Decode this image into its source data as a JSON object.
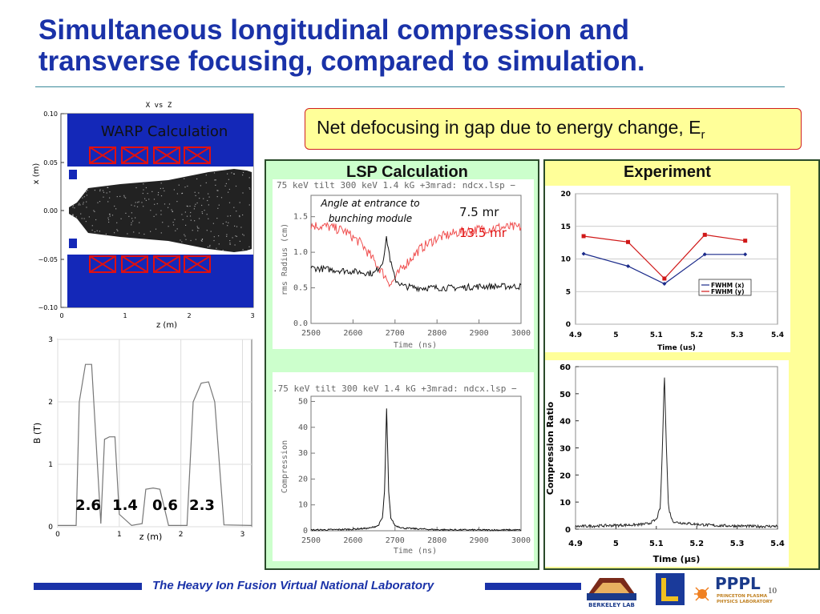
{
  "slide": {
    "title_line1": "Simultaneous longitudinal compression and",
    "title_line2": "transverse focusing, compared to simulation.",
    "page_number": "10"
  },
  "callout": {
    "text": "Net defocusing in gap due to energy change, E",
    "subscript": "r"
  },
  "warp": {
    "plot_title": "X vs Z",
    "label": "WARP Calculation",
    "xlabel": "z  (m)",
    "ylabel": "x   (m)",
    "yticks": [
      "0.10",
      "0.05",
      "0.00",
      "−0.05",
      "−0.10"
    ],
    "xticks": [
      "0",
      "1",
      "2",
      "3"
    ]
  },
  "bfield": {
    "xlabel": "z (m)",
    "ylabel": "B (T)",
    "xticks": [
      "0",
      "1",
      "2",
      "3"
    ],
    "yticks": [
      "0",
      "1",
      "2",
      "3"
    ],
    "field_labels": [
      "2.6",
      "1.4",
      "0.6",
      "2.3"
    ]
  },
  "lsp": {
    "panel_title": "LSP Calculation",
    "plot1_header": "75 keV tilt 300 keV 1.4 kG +3mrad: ndcx.lsp −",
    "plot2_header": ".75 keV tilt 300 keV 1.4 kG +3mrad: ndcx.lsp −",
    "annotation": "Angle at entrance to bunching module",
    "mr_black": "7.5 mr",
    "mr_red": "13.5 mr",
    "plot1_ylabel": "rms Radius (cm)",
    "plot2_ylabel": "Compression",
    "xlabel": "Time (ns)",
    "xticks": [
      "2500",
      "2600",
      "2700",
      "2800",
      "2900",
      "3000"
    ],
    "plot1_yticks": [
      "0.0",
      "0.5",
      "1.0",
      "1.5"
    ],
    "plot2_yticks": [
      "0",
      "10",
      "20",
      "30",
      "40",
      "50"
    ]
  },
  "experiment": {
    "panel_title": "Experiment",
    "plot1_xlabel": "Time (us)",
    "plot2_xlabel_prefix": "Time (",
    "plot2_xlabel_mu": "μ",
    "plot2_xlabel_suffix": "s)",
    "plot2_ylabel": "Compression Ratio",
    "xticks": [
      "4.9",
      "5",
      "5.1",
      "5.2",
      "5.3",
      "5.4"
    ],
    "plot1_yticks": [
      "0",
      "5",
      "10",
      "15",
      "20"
    ],
    "plot2_yticks": [
      "0",
      "10",
      "20",
      "30",
      "40",
      "50",
      "60"
    ]
  },
  "footer": {
    "text": "The Heavy Ion Fusion Virtual National Laboratory",
    "logo_berkeley": "BERKELEY LAB",
    "logo_pppl": "PPPL",
    "logo_pppl_sub1": "PRINCETON PLASMA",
    "logo_pppl_sub2": "PHYSICS LABORATORY"
  },
  "colors": {
    "title": "#1a32a8",
    "warp_background": "#1428b8",
    "lsp_panel": "#ccffcc",
    "experiment_panel": "#ffff99",
    "callout_border": "#d02020",
    "series_x": "#1a2a8a",
    "series_y": "#d01818"
  },
  "chart_data": [
    {
      "type": "line",
      "panel": "experiment_fwhm",
      "xlabel": "Time (us)",
      "ylabel": "",
      "xlim": [
        4.9,
        5.4
      ],
      "ylim": [
        0,
        20
      ],
      "grid": true,
      "legend": "right",
      "series": [
        {
          "name": "FWHM (x)",
          "x": [
            4.92,
            5.03,
            5.12,
            5.22,
            5.32
          ],
          "y": [
            10.8,
            8.9,
            6.2,
            10.7,
            10.7
          ]
        },
        {
          "name": "FWHM (y)",
          "x": [
            4.92,
            5.03,
            5.12,
            5.22,
            5.32
          ],
          "y": [
            13.5,
            12.6,
            7.0,
            13.7,
            12.8
          ]
        }
      ]
    },
    {
      "type": "line",
      "panel": "experiment_compression",
      "xlabel": "Time (μs)",
      "ylabel": "Compression Ratio",
      "xlim": [
        4.9,
        5.4
      ],
      "ylim": [
        0,
        60
      ],
      "peak": {
        "x": 5.12,
        "y": 58
      },
      "x": [
        4.9,
        4.95,
        5.0,
        5.05,
        5.08,
        5.1,
        5.11,
        5.115,
        5.12,
        5.125,
        5.13,
        5.14,
        5.15,
        5.2,
        5.25,
        5.3,
        5.35,
        5.4
      ],
      "y": [
        1.0,
        1.2,
        1.4,
        1.6,
        2.0,
        3.5,
        8.0,
        30.0,
        58.0,
        30.0,
        8.0,
        3.0,
        2.5,
        1.8,
        1.3,
        1.2,
        1.0,
        1.1
      ]
    },
    {
      "type": "line",
      "panel": "lsp_radius",
      "xlabel": "Time (ns)",
      "ylabel": "rms Radius (cm)",
      "xlim": [
        2500,
        3000
      ],
      "ylim": [
        0,
        1.8
      ],
      "series": [
        {
          "x": [
            2500,
            2540,
            2580,
            2620,
            2650,
            2670,
            2680,
            2690,
            2700,
            2720,
            2760,
            2800,
            2850,
            2900,
            2950,
            3000
          ],
          "y": [
            0.78,
            0.76,
            0.74,
            0.72,
            0.7,
            0.85,
            1.2,
            0.85,
            0.62,
            0.52,
            0.5,
            0.5,
            0.5,
            0.52,
            0.52,
            0.52
          ]
        },
        {
          "x": [
            2500,
            2540,
            2580,
            2620,
            2660,
            2690,
            2720,
            2760,
            2800,
            2850,
            2900,
            2950,
            3000
          ],
          "y": [
            1.38,
            1.36,
            1.3,
            1.12,
            0.8,
            0.55,
            0.8,
            1.05,
            1.2,
            1.28,
            1.32,
            1.35,
            1.35
          ]
        }
      ]
    },
    {
      "type": "line",
      "panel": "lsp_compression",
      "xlabel": "Time (ns)",
      "ylabel": "Compression",
      "xlim": [
        2500,
        3000
      ],
      "ylim": [
        0,
        52
      ],
      "x": [
        2500,
        2550,
        2600,
        2640,
        2660,
        2670,
        2675,
        2680,
        2685,
        2690,
        2700,
        2720,
        2800,
        2900,
        3000
      ],
      "y": [
        0.3,
        0.4,
        0.6,
        1.0,
        2.0,
        5.0,
        15.0,
        47.0,
        15.0,
        5.0,
        2.0,
        1.0,
        0.4,
        0.3,
        0.3
      ]
    },
    {
      "type": "line",
      "panel": "magnetic_field",
      "xlabel": "z (m)",
      "ylabel": "B (T)",
      "xlim": [
        0,
        3.15
      ],
      "ylim": [
        0,
        3
      ],
      "x": [
        0.0,
        0.3,
        0.35,
        0.45,
        0.55,
        0.7,
        0.76,
        0.84,
        0.93,
        1.0,
        1.2,
        1.37,
        1.43,
        1.55,
        1.66,
        1.8,
        1.88,
        1.93,
        2.0,
        2.1,
        2.2,
        2.33,
        2.45,
        2.55,
        2.7,
        3.15
      ],
      "y": [
        0.02,
        0.02,
        2.0,
        2.6,
        2.6,
        0.05,
        1.4,
        1.44,
        1.44,
        0.2,
        0.02,
        0.05,
        0.6,
        0.62,
        0.6,
        0.02,
        0.02,
        0.02,
        0.02,
        0.02,
        2.0,
        2.3,
        2.32,
        2.0,
        0.03,
        0.02
      ]
    }
  ]
}
